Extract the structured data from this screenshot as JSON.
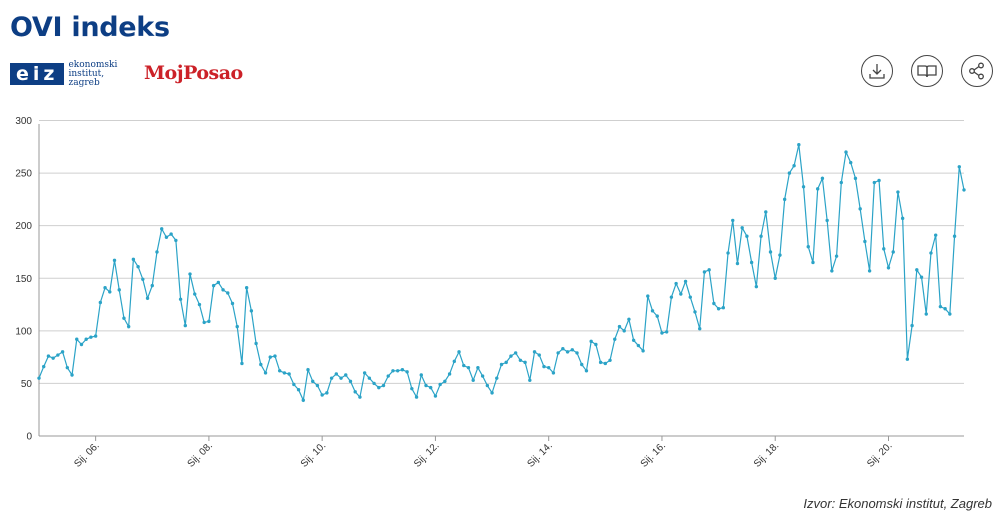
{
  "header": {
    "title": "OVI indeks",
    "eiz_logo": {
      "mark": "eiz",
      "text": "ekonomski\ninstitut,\nzagreb"
    },
    "mojposao_logo": "MojPosao"
  },
  "toolbar": [
    {
      "name": "download-button",
      "icon": "download-icon"
    },
    {
      "name": "methodology-button",
      "icon": "book-icon"
    },
    {
      "name": "share-button",
      "icon": "share-icon"
    }
  ],
  "source": "Izvor: Ekonomski institut, Zagreb",
  "chart_data": {
    "type": "line",
    "title": "",
    "xlabel": "",
    "ylabel": "",
    "ylim": [
      0,
      310
    ],
    "yticks": [
      0,
      50,
      100,
      150,
      200,
      250,
      300
    ],
    "x_start": "2005-01",
    "x_ticks": [
      {
        "label": "Sij. 06.",
        "index": 12
      },
      {
        "label": "Sij. 08.",
        "index": 36
      },
      {
        "label": "Sij. 10.",
        "index": 60
      },
      {
        "label": "Sij. 12.",
        "index": 84
      },
      {
        "label": "Sij. 14.",
        "index": 108
      },
      {
        "label": "Sij. 16.",
        "index": 132
      },
      {
        "label": "Sij. 18.",
        "index": 156
      },
      {
        "label": "Sij. 20.",
        "index": 180
      }
    ],
    "grid": true,
    "color": "#2ba3c7",
    "series": [
      {
        "values": [
          55,
          66,
          76,
          74,
          77,
          80,
          65,
          58,
          92,
          87,
          92,
          94,
          95,
          127,
          141,
          137,
          167,
          139,
          112,
          104,
          168,
          161,
          149,
          131,
          143,
          175,
          197,
          189,
          192,
          186,
          130,
          105,
          154,
          135,
          125,
          108,
          109,
          143,
          146,
          139,
          136,
          126,
          104,
          69,
          141,
          119,
          88,
          68,
          60,
          75,
          76,
          62,
          60,
          59,
          49,
          44,
          34,
          63,
          52,
          48,
          39,
          41,
          55,
          59,
          55,
          58,
          52,
          42,
          37,
          60,
          55,
          50,
          46,
          48,
          57,
          62,
          62,
          63,
          61,
          45,
          37,
          58,
          48,
          46,
          38,
          49,
          52,
          59,
          71,
          80,
          67,
          65,
          53,
          65,
          57,
          48,
          41,
          55,
          68,
          70,
          76,
          79,
          72,
          70,
          53,
          80,
          77,
          66,
          65,
          60,
          79,
          83,
          80,
          82,
          79,
          68,
          62,
          90,
          87,
          70,
          69,
          72,
          92,
          104,
          100,
          111,
          91,
          86,
          81,
          133,
          119,
          114,
          98,
          99,
          132,
          145,
          135,
          147,
          132,
          118,
          102,
          156,
          158,
          126,
          121,
          122,
          174,
          205,
          164,
          198,
          190,
          165,
          142,
          190,
          213,
          175,
          150,
          172,
          225,
          250,
          257,
          277,
          237,
          180,
          165,
          235,
          245,
          205,
          157,
          171,
          241,
          270,
          260,
          245,
          216,
          185,
          157,
          241,
          243,
          178,
          160,
          175,
          232,
          207,
          73,
          105,
          158,
          151,
          116,
          174,
          191,
          123,
          121,
          116,
          190,
          256,
          234
        ]
      }
    ]
  }
}
